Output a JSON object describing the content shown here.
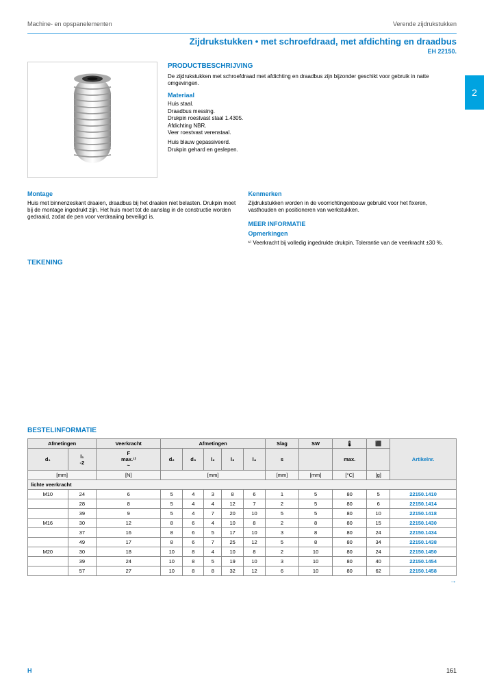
{
  "header": {
    "left": "Machine- en opspanelementen",
    "right": "Verende zijdrukstukken"
  },
  "title": "Zijdrukstukken • met schroefdraad, met afdichting en draadbus",
  "subtitle": "EH 22150.",
  "tab": "2",
  "product": {
    "heading": "PRODUCTBESCHRIJVING",
    "desc": "De zijdrukstukken met schroefdraad met afdichting en draadbus zijn bijzonder geschikt voor gebruik in natte omgevingen.",
    "materiaal_h": "Materiaal",
    "materiaal": "Huis staal.\nDraadbus messing.\nDrukpin roestvast staal 1.4305.\nAfdichting NBR.\nVeer roestvast verenstaal.",
    "uitvoering_h": "",
    "uitvoering": "Huis blauw gepassiveerd.\nDrukpin gehard en geslepen.",
    "montage_h": "Montage",
    "montage": "Huis met binnenzeskant draaien, draadbus bij het draaien niet belasten. Drukpin moet bij de montage ingedrukt zijn. Het huis moet tot de aanslag in de constructie worden gedraaid, zodat de pen voor verdraaiing beveiligd is.",
    "kenmerken_h": "Kenmerken",
    "kenmerken": "Zijdrukstukken worden in de voorrichtingenbouw gebruikt voor het fixeren, vasthouden en positioneren van werkstukken.",
    "meer_h": "MEER INFORMATIE",
    "opm_h": "Opmerkingen",
    "opm": "¹⁾ Veerkracht bij volledig ingedrukte drukpin. Tolerantie van de veerkracht ±30 %."
  },
  "tekening": "TEKENING",
  "bestel": "BESTELINFORMATIE",
  "table": {
    "headers": {
      "afm1": "Afmetingen",
      "veer": "Veerkracht",
      "afm2": "Afmetingen",
      "slag": "Slag",
      "sw": "SW",
      "temp": "🌡",
      "gew": "⬛",
      "art": "Artikelnr.",
      "d1": "d₁",
      "l1": "l₁\n-2",
      "f": "F\nmax.¹⁾\n~",
      "d2": "d₂",
      "d3": "d₃",
      "l2": "l₂",
      "l3": "l₃",
      "l4": "l₄",
      "s": "s",
      "swv": "",
      "tmax": "max.",
      "mm": "[mm]",
      "n": "[N]",
      "c": "[°C]",
      "g": "[g]"
    },
    "group": "lichte veerkracht",
    "rows": [
      {
        "d1": "M10",
        "l1": "24",
        "f": "6",
        "d2": "5",
        "d3": "4",
        "l2": "3",
        "l3": "8",
        "l4": "6",
        "s": "1",
        "sw": "5",
        "t": "80",
        "g": "5",
        "art": "22150.1410"
      },
      {
        "d1": "",
        "l1": "28",
        "f": "8",
        "d2": "5",
        "d3": "4",
        "l2": "4",
        "l3": "12",
        "l4": "7",
        "s": "2",
        "sw": "5",
        "t": "80",
        "g": "6",
        "art": "22150.1414"
      },
      {
        "d1": "",
        "l1": "39",
        "f": "9",
        "d2": "5",
        "d3": "4",
        "l2": "7",
        "l3": "20",
        "l4": "10",
        "s": "5",
        "sw": "5",
        "t": "80",
        "g": "10",
        "art": "22150.1418"
      },
      {
        "d1": "M16",
        "l1": "30",
        "f": "12",
        "d2": "8",
        "d3": "6",
        "l2": "4",
        "l3": "10",
        "l4": "8",
        "s": "2",
        "sw": "8",
        "t": "80",
        "g": "15",
        "art": "22150.1430"
      },
      {
        "d1": "",
        "l1": "37",
        "f": "16",
        "d2": "8",
        "d3": "6",
        "l2": "5",
        "l3": "17",
        "l4": "10",
        "s": "3",
        "sw": "8",
        "t": "80",
        "g": "24",
        "art": "22150.1434"
      },
      {
        "d1": "",
        "l1": "49",
        "f": "17",
        "d2": "8",
        "d3": "6",
        "l2": "7",
        "l3": "25",
        "l4": "12",
        "s": "5",
        "sw": "8",
        "t": "80",
        "g": "34",
        "art": "22150.1438"
      },
      {
        "d1": "M20",
        "l1": "30",
        "f": "18",
        "d2": "10",
        "d3": "8",
        "l2": "4",
        "l3": "10",
        "l4": "8",
        "s": "2",
        "sw": "10",
        "t": "80",
        "g": "24",
        "art": "22150.1450"
      },
      {
        "d1": "",
        "l1": "39",
        "f": "24",
        "d2": "10",
        "d3": "8",
        "l2": "5",
        "l3": "19",
        "l4": "10",
        "s": "3",
        "sw": "10",
        "t": "80",
        "g": "40",
        "art": "22150.1454"
      },
      {
        "d1": "",
        "l1": "57",
        "f": "27",
        "d2": "10",
        "d3": "8",
        "l2": "8",
        "l3": "32",
        "l4": "12",
        "s": "6",
        "sw": "10",
        "t": "80",
        "g": "62",
        "art": "22150.1458"
      }
    ]
  },
  "footer": {
    "logo": "H",
    "page": "161"
  }
}
